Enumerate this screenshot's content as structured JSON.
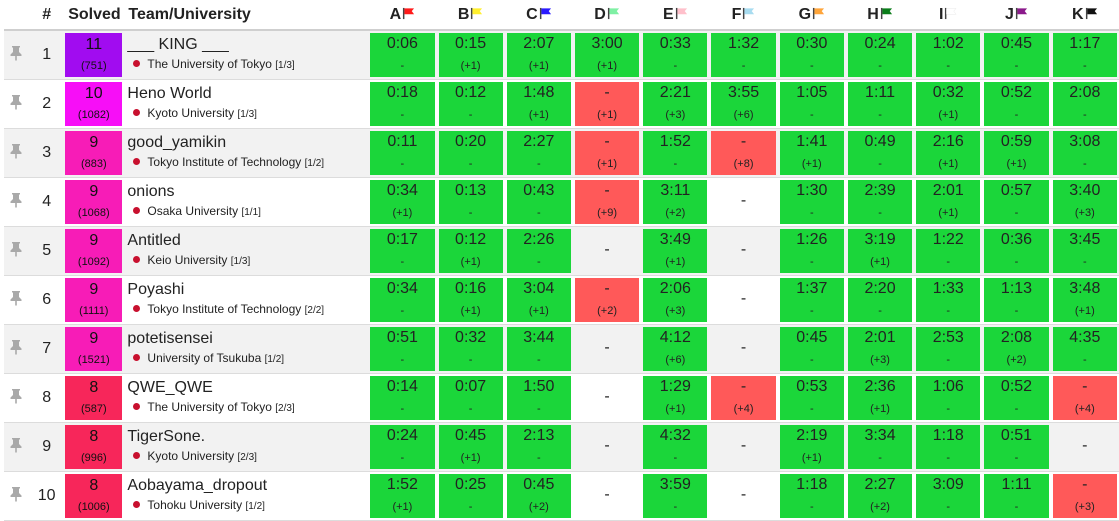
{
  "headers": {
    "rank": "#",
    "solved": "Solved",
    "team": "Team/University"
  },
  "problems": [
    {
      "label": "A",
      "color": "#ff1a1a"
    },
    {
      "label": "B",
      "color": "#ffef2e"
    },
    {
      "label": "C",
      "color": "#2a1aff"
    },
    {
      "label": "D",
      "color": "#7ff0a4"
    },
    {
      "label": "E",
      "color": "#ffc0cb"
    },
    {
      "label": "F",
      "color": "#a8dcf0"
    },
    {
      "label": "G",
      "color": "#ffa53a"
    },
    {
      "label": "H",
      "color": "#0b7d1a"
    },
    {
      "label": "I",
      "color": "#ffffff"
    },
    {
      "label": "J",
      "color": "#8b1a8b"
    },
    {
      "label": "K",
      "color": "#111111"
    }
  ],
  "solved_colors": {
    "11": "#a10cf0",
    "10": "#f70ef7",
    "9": "#f71cb7",
    "8": "#f7265a"
  },
  "rows": [
    {
      "rank": "1",
      "solved": "11",
      "penalty": "(751)",
      "team": "___ KING ___",
      "university": "The University of Tokyo",
      "tag": "[1/3]",
      "cells": [
        [
          "ac",
          "0:06",
          "-"
        ],
        [
          "ac",
          "0:15",
          "(+1)"
        ],
        [
          "ac",
          "2:07",
          "(+1)"
        ],
        [
          "ac",
          "3:00",
          "(+1)"
        ],
        [
          "ac",
          "0:33",
          "-"
        ],
        [
          "ac",
          "1:32",
          "-"
        ],
        [
          "ac",
          "0:30",
          "-"
        ],
        [
          "ac",
          "0:24",
          "-"
        ],
        [
          "ac",
          "1:02",
          "-"
        ],
        [
          "ac",
          "0:45",
          "-"
        ],
        [
          "ac",
          "1:17",
          "-"
        ]
      ]
    },
    {
      "rank": "2",
      "solved": "10",
      "penalty": "(1082)",
      "team": "Heno World",
      "university": "Kyoto University",
      "tag": "[1/3]",
      "cells": [
        [
          "ac",
          "0:18",
          "-"
        ],
        [
          "ac",
          "0:12",
          "-"
        ],
        [
          "ac",
          "1:48",
          "(+1)"
        ],
        [
          "wa",
          "-",
          "(+1)"
        ],
        [
          "ac",
          "2:21",
          "(+3)"
        ],
        [
          "ac",
          "3:55",
          "(+6)"
        ],
        [
          "ac",
          "1:05",
          "-"
        ],
        [
          "ac",
          "1:11",
          "-"
        ],
        [
          "ac",
          "0:32",
          "(+1)"
        ],
        [
          "ac",
          "0:52",
          "-"
        ],
        [
          "ac",
          "2:08",
          "-"
        ]
      ]
    },
    {
      "rank": "3",
      "solved": "9",
      "penalty": "(883)",
      "team": "good_yamikin",
      "university": "Tokyo Institute of Technology",
      "tag": "[1/2]",
      "cells": [
        [
          "ac",
          "0:11",
          "-"
        ],
        [
          "ac",
          "0:20",
          "-"
        ],
        [
          "ac",
          "2:27",
          "-"
        ],
        [
          "wa",
          "-",
          "(+1)"
        ],
        [
          "ac",
          "1:52",
          "-"
        ],
        [
          "wa",
          "-",
          "(+8)"
        ],
        [
          "ac",
          "1:41",
          "(+1)"
        ],
        [
          "ac",
          "0:49",
          "-"
        ],
        [
          "ac",
          "2:16",
          "(+1)"
        ],
        [
          "ac",
          "0:59",
          "(+1)"
        ],
        [
          "ac",
          "3:08",
          "-"
        ]
      ]
    },
    {
      "rank": "4",
      "solved": "9",
      "penalty": "(1068)",
      "team": "onions",
      "university": "Osaka University",
      "tag": "[1/1]",
      "cells": [
        [
          "ac",
          "0:34",
          "(+1)"
        ],
        [
          "ac",
          "0:13",
          "-"
        ],
        [
          "ac",
          "0:43",
          "-"
        ],
        [
          "wa",
          "-",
          "(+9)"
        ],
        [
          "ac",
          "3:11",
          "(+2)"
        ],
        [
          "none",
          "-",
          ""
        ],
        [
          "ac",
          "1:30",
          "-"
        ],
        [
          "ac",
          "2:39",
          "-"
        ],
        [
          "ac",
          "2:01",
          "(+1)"
        ],
        [
          "ac",
          "0:57",
          "-"
        ],
        [
          "ac",
          "3:40",
          "(+3)"
        ]
      ]
    },
    {
      "rank": "5",
      "solved": "9",
      "penalty": "(1092)",
      "team": "Antitled",
      "university": "Keio University",
      "tag": "[1/3]",
      "cells": [
        [
          "ac",
          "0:17",
          "-"
        ],
        [
          "ac",
          "0:12",
          "(+1)"
        ],
        [
          "ac",
          "2:26",
          "-"
        ],
        [
          "none",
          "-",
          ""
        ],
        [
          "ac",
          "3:49",
          "(+1)"
        ],
        [
          "none",
          "-",
          ""
        ],
        [
          "ac",
          "1:26",
          "-"
        ],
        [
          "ac",
          "3:19",
          "(+1)"
        ],
        [
          "ac",
          "1:22",
          "-"
        ],
        [
          "ac",
          "0:36",
          "-"
        ],
        [
          "ac",
          "3:45",
          "-"
        ]
      ]
    },
    {
      "rank": "6",
      "solved": "9",
      "penalty": "(1111)",
      "team": "Poyashi",
      "university": "Tokyo Institute of Technology",
      "tag": "[2/2]",
      "cells": [
        [
          "ac",
          "0:34",
          "-"
        ],
        [
          "ac",
          "0:16",
          "(+1)"
        ],
        [
          "ac",
          "3:04",
          "(+1)"
        ],
        [
          "wa",
          "-",
          "(+2)"
        ],
        [
          "ac",
          "2:06",
          "(+3)"
        ],
        [
          "none",
          "-",
          ""
        ],
        [
          "ac",
          "1:37",
          "-"
        ],
        [
          "ac",
          "2:20",
          "-"
        ],
        [
          "ac",
          "1:33",
          "-"
        ],
        [
          "ac",
          "1:13",
          "-"
        ],
        [
          "ac",
          "3:48",
          "(+1)"
        ]
      ]
    },
    {
      "rank": "7",
      "solved": "9",
      "penalty": "(1521)",
      "team": "potetisensei",
      "university": "University of Tsukuba",
      "tag": "[1/2]",
      "cells": [
        [
          "ac",
          "0:51",
          "-"
        ],
        [
          "ac",
          "0:32",
          "-"
        ],
        [
          "ac",
          "3:44",
          "-"
        ],
        [
          "none",
          "-",
          ""
        ],
        [
          "ac",
          "4:12",
          "(+6)"
        ],
        [
          "none",
          "-",
          ""
        ],
        [
          "ac",
          "0:45",
          "-"
        ],
        [
          "ac",
          "2:01",
          "(+3)"
        ],
        [
          "ac",
          "2:53",
          "-"
        ],
        [
          "ac",
          "2:08",
          "(+2)"
        ],
        [
          "ac",
          "4:35",
          "-"
        ]
      ]
    },
    {
      "rank": "8",
      "solved": "8",
      "penalty": "(587)",
      "team": "QWE_QWE",
      "university": "The University of Tokyo",
      "tag": "[2/3]",
      "cells": [
        [
          "ac",
          "0:14",
          "-"
        ],
        [
          "ac",
          "0:07",
          "-"
        ],
        [
          "ac",
          "1:50",
          "-"
        ],
        [
          "none",
          "-",
          ""
        ],
        [
          "ac",
          "1:29",
          "(+1)"
        ],
        [
          "wa",
          "-",
          "(+4)"
        ],
        [
          "ac",
          "0:53",
          "-"
        ],
        [
          "ac",
          "2:36",
          "(+1)"
        ],
        [
          "ac",
          "1:06",
          "-"
        ],
        [
          "ac",
          "0:52",
          "-"
        ],
        [
          "wa",
          "-",
          "(+4)"
        ]
      ]
    },
    {
      "rank": "9",
      "solved": "8",
      "penalty": "(996)",
      "team": "TigerSone.",
      "university": "Kyoto University",
      "tag": "[2/3]",
      "cells": [
        [
          "ac",
          "0:24",
          "-"
        ],
        [
          "ac",
          "0:45",
          "(+1)"
        ],
        [
          "ac",
          "2:13",
          "-"
        ],
        [
          "none",
          "-",
          ""
        ],
        [
          "ac",
          "4:32",
          "-"
        ],
        [
          "none",
          "-",
          ""
        ],
        [
          "ac",
          "2:19",
          "(+1)"
        ],
        [
          "ac",
          "3:34",
          "-"
        ],
        [
          "ac",
          "1:18",
          "-"
        ],
        [
          "ac",
          "0:51",
          "-"
        ],
        [
          "none",
          "-",
          ""
        ]
      ]
    },
    {
      "rank": "10",
      "solved": "8",
      "penalty": "(1006)",
      "team": "Aobayama_dropout",
      "university": "Tohoku University",
      "tag": "[1/2]",
      "cells": [
        [
          "ac",
          "1:52",
          "(+1)"
        ],
        [
          "ac",
          "0:25",
          "-"
        ],
        [
          "ac",
          "0:45",
          "(+2)"
        ],
        [
          "none",
          "-",
          ""
        ],
        [
          "ac",
          "3:59",
          "-"
        ],
        [
          "none",
          "-",
          ""
        ],
        [
          "ac",
          "1:18",
          "-"
        ],
        [
          "ac",
          "2:27",
          "(+2)"
        ],
        [
          "ac",
          "3:09",
          "-"
        ],
        [
          "ac",
          "1:11",
          "-"
        ],
        [
          "wa",
          "-",
          "(+3)"
        ]
      ]
    }
  ]
}
